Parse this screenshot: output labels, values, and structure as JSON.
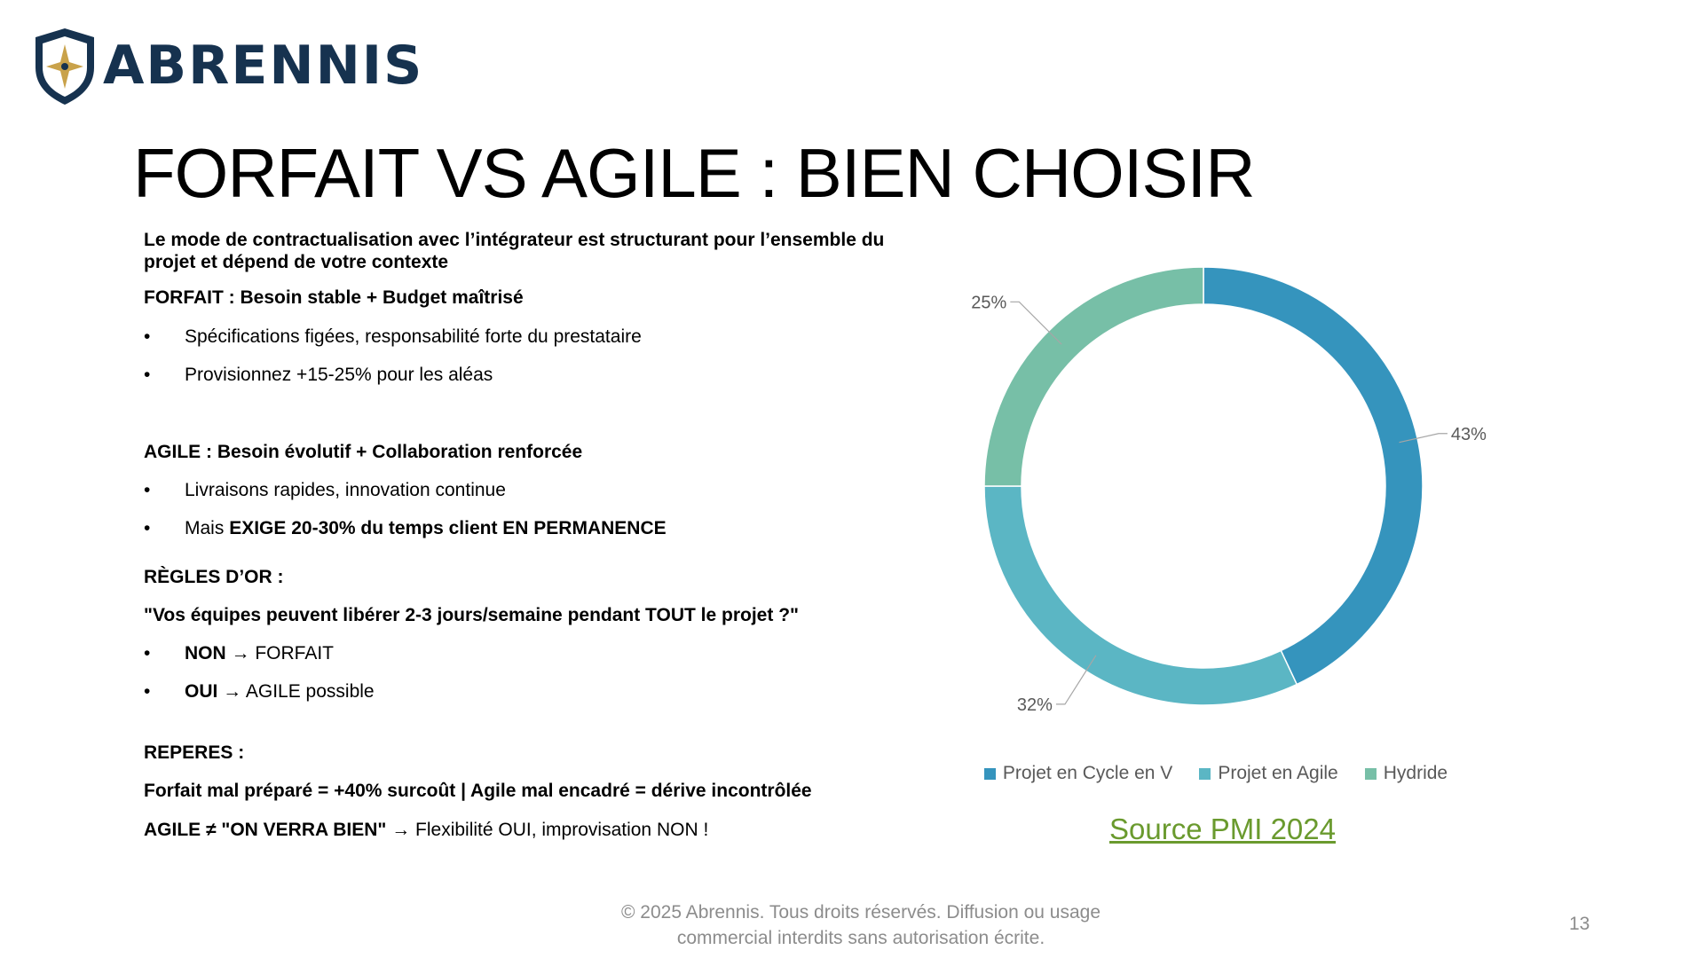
{
  "logo": {
    "text": "ABRENNIS"
  },
  "slide": {
    "title": "FORFAIT VS AGILE : BIEN CHOISIR",
    "intro": "Le mode de contractualisation avec l’intégrateur est structurant pour l’ensemble du projet et dépend de votre contexte",
    "forfait": {
      "heading": "FORFAIT : Besoin stable + Budget maîtrisé",
      "bullets": [
        "Spécifications figées, responsabilité forte du prestataire",
        "Provisionnez +15-25% pour les aléas"
      ]
    },
    "agile": {
      "heading": "AGILE : Besoin évolutif + Collaboration renforcée",
      "bullet1": "Livraisons rapides, innovation continue",
      "bullet2_prefix": "Mais ",
      "bullet2_bold": "EXIGE 20-30% du temps client EN PERMANENCE"
    },
    "regles": {
      "heading": "RÈGLES D’OR :",
      "question": "\"Vos équipes peuvent libérer 2-3 jours/semaine pendant TOUT le projet ?\"",
      "items": [
        {
          "bold": "NON",
          "rest": " → FORFAIT"
        },
        {
          "bold": "OUI",
          "rest": " → AGILE possible"
        }
      ]
    },
    "reperes": {
      "heading": "REPERES :",
      "line1": "Forfait mal préparé = +40% surcoût | Agile mal encadré = dérive incontrôlée",
      "line2_bold": "AGILE ≠ \"ON VERRA BIEN\"",
      "line2_rest": " → Flexibilité OUI, improvisation NON !"
    },
    "source": "Source PMI 2024",
    "footer": {
      "line1": "© 2025 Abrennis. Tous droits réservés. Diffusion ou usage",
      "line2": "commercial interdits sans autorisation écrite."
    },
    "page_number": "13"
  },
  "chart_data": {
    "type": "pie",
    "variant": "donut",
    "title": "",
    "legend_position": "bottom",
    "categories": [
      "Projet en Cycle en V",
      "Projet en Agile",
      "Hydride"
    ],
    "values": [
      43,
      32,
      25
    ],
    "labels": [
      "43%",
      "32%",
      "25%"
    ],
    "colors": [
      "#3594bd",
      "#5bb6c4",
      "#77bfa7"
    ]
  }
}
